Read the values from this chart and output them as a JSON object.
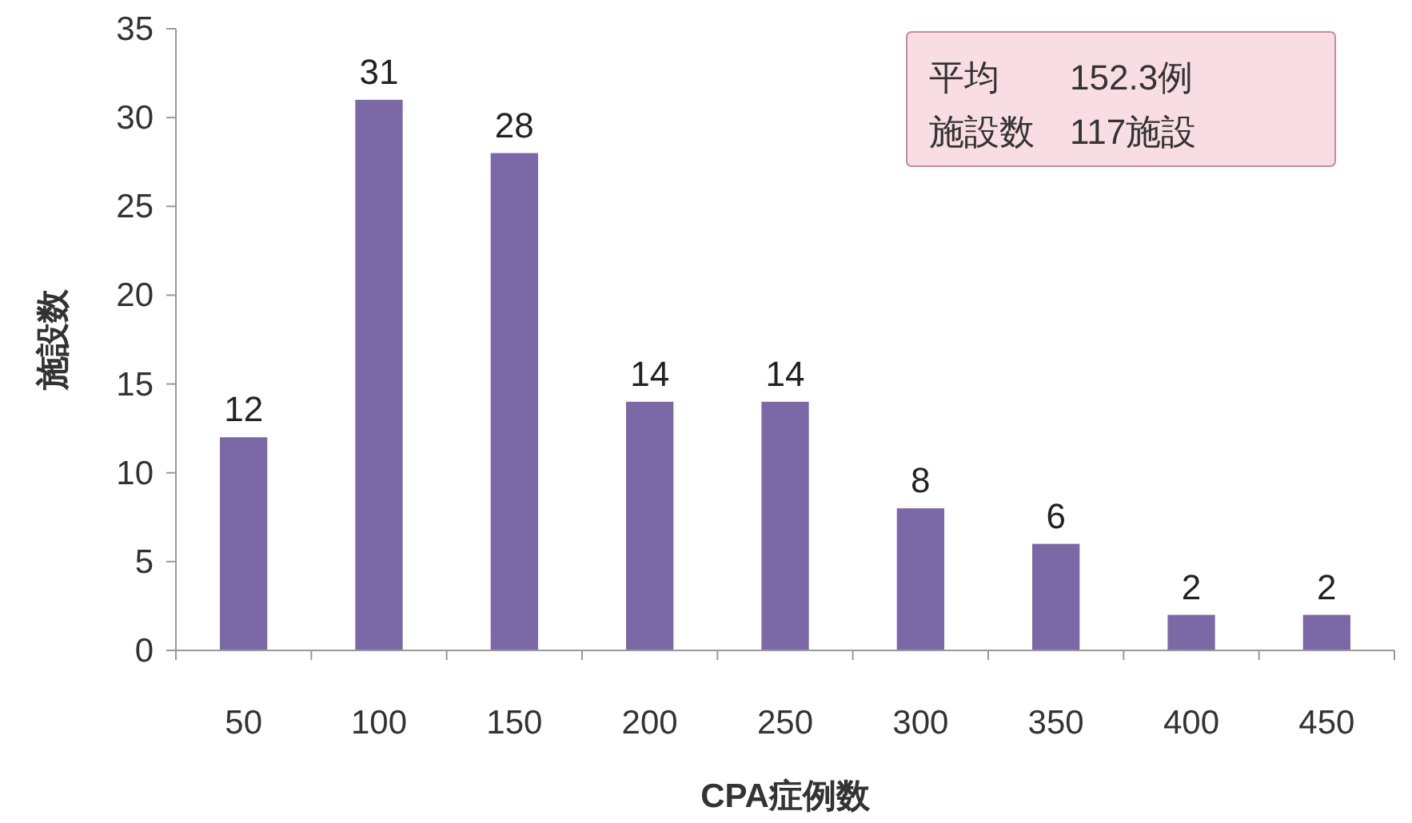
{
  "chart_data": {
    "type": "bar",
    "xlabel": "CPA症例数",
    "ylabel": "施設数",
    "categories": [
      "50",
      "100",
      "150",
      "200",
      "250",
      "300",
      "350",
      "400",
      "450"
    ],
    "values": [
      12,
      31,
      28,
      14,
      14,
      8,
      6,
      2,
      2
    ],
    "color": "#7b68a6",
    "ylim": [
      0,
      35
    ],
    "yticks": [
      0,
      5,
      10,
      15,
      20,
      25,
      30,
      35
    ],
    "data_labels": true,
    "grid": false,
    "annotations": [
      "平均　　152.3例",
      "施設数　117施設"
    ]
  }
}
